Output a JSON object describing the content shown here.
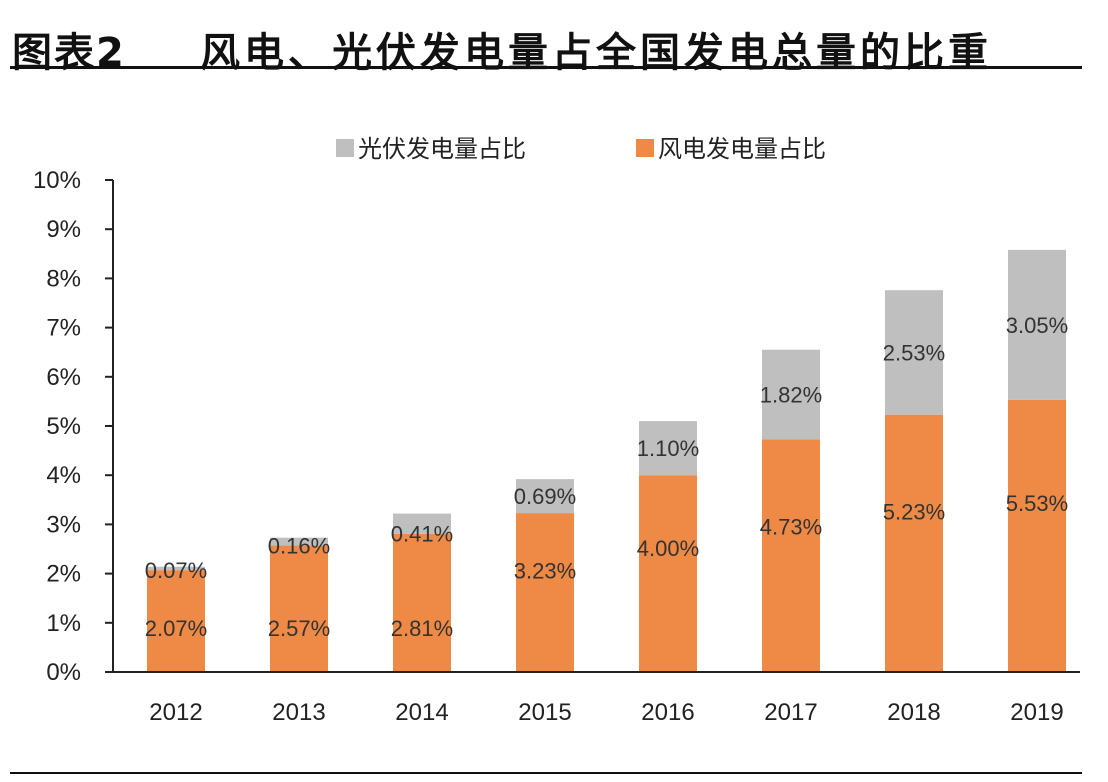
{
  "figure": {
    "label": "图表2",
    "title": "风电、光伏发电量占全国发电总量的比重"
  },
  "chart_data": {
    "type": "bar",
    "stacked": true,
    "title": "",
    "xlabel": "",
    "ylabel": "",
    "categories": [
      "2012",
      "2013",
      "2014",
      "2015",
      "2016",
      "2017",
      "2018",
      "2019"
    ],
    "series": [
      {
        "name": "风电发电量占比",
        "color": "#EE8A45",
        "values": [
          2.07,
          2.57,
          2.81,
          3.23,
          4.0,
          4.73,
          5.23,
          5.53
        ],
        "labels": [
          "2.07%",
          "2.57%",
          "2.81%",
          "3.23%",
          "4.00%",
          "4.73%",
          "5.23%",
          "5.53%"
        ]
      },
      {
        "name": "光伏发电量占比",
        "color": "#BFBFBF",
        "values": [
          0.07,
          0.16,
          0.41,
          0.69,
          1.1,
          1.82,
          2.53,
          3.05
        ],
        "labels": [
          "0.07%",
          "0.16%",
          "0.41%",
          "0.69%",
          "1.10%",
          "1.82%",
          "2.53%",
          "3.05%"
        ]
      }
    ],
    "legend_order": [
      1,
      0
    ],
    "legend_position": "top-center",
    "ylim": [
      0,
      10
    ],
    "yticks": [
      0,
      1,
      2,
      3,
      4,
      5,
      6,
      7,
      8,
      9,
      10
    ],
    "ytick_labels": [
      "0%",
      "1%",
      "2%",
      "3%",
      "4%",
      "5%",
      "6%",
      "7%",
      "8%",
      "9%",
      "10%"
    ],
    "grid": false
  }
}
